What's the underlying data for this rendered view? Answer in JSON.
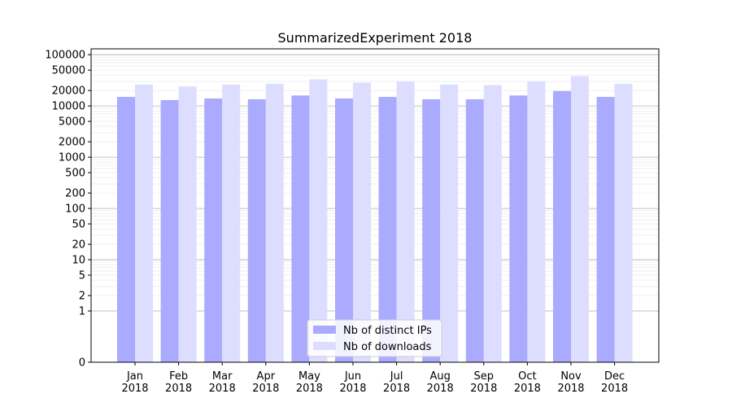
{
  "chart_data": {
    "type": "bar",
    "title": "SummarizedExperiment 2018",
    "xlabel": "",
    "ylabel": "",
    "y_scale": "symlog",
    "grid": true,
    "legend_position": "lower-center",
    "categories": [
      [
        "Jan",
        "2018"
      ],
      [
        "Feb",
        "2018"
      ],
      [
        "Mar",
        "2018"
      ],
      [
        "Apr",
        "2018"
      ],
      [
        "May",
        "2018"
      ],
      [
        "Jun",
        "2018"
      ],
      [
        "Jul",
        "2018"
      ],
      [
        "Aug",
        "2018"
      ],
      [
        "Sep",
        "2018"
      ],
      [
        "Oct",
        "2018"
      ],
      [
        "Nov",
        "2018"
      ],
      [
        "Dec",
        "2018"
      ]
    ],
    "y_ticks": [
      0,
      1,
      2,
      5,
      10,
      20,
      50,
      100,
      200,
      500,
      1000,
      2000,
      5000,
      10000,
      20000,
      50000,
      100000
    ],
    "y_tick_labels": [
      "0",
      "1",
      "2",
      "5",
      "10",
      "20",
      "50",
      "100",
      "200",
      "500",
      "1000",
      "2000",
      "5000",
      "10000",
      "20000",
      "50000",
      "100000"
    ],
    "ylim": [
      0,
      130000
    ],
    "series": [
      {
        "name": "Nb of distinct IPs",
        "color": "#aaaaff",
        "values": [
          15000,
          13000,
          14000,
          13500,
          16000,
          14000,
          15000,
          13500,
          13500,
          16000,
          19500,
          15000
        ]
      },
      {
        "name": "Nb of downloads",
        "color": "#ddddff",
        "values": [
          26000,
          24000,
          26000,
          27000,
          33000,
          28500,
          30000,
          26000,
          25500,
          30000,
          38000,
          27000
        ]
      }
    ]
  }
}
